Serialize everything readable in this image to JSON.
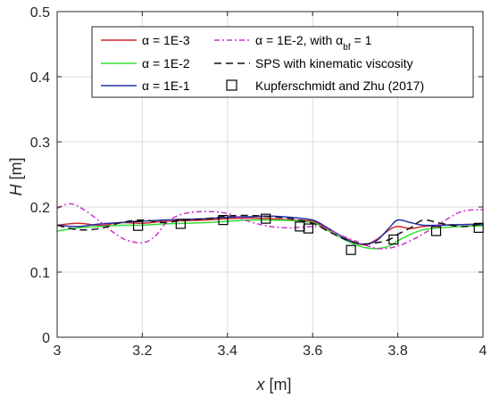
{
  "chart_data": {
    "type": "line",
    "xlabel": {
      "var": "x",
      "unit": " [m]"
    },
    "ylabel": {
      "var": "H",
      "unit": " [m]"
    },
    "xlim": [
      3,
      4
    ],
    "ylim": [
      0,
      0.5
    ],
    "xticks": [
      3,
      3.2,
      3.4,
      3.6,
      3.8,
      4
    ],
    "yticks": [
      0,
      0.1,
      0.2,
      0.3,
      0.4,
      0.5
    ],
    "xtick_labels": [
      "3",
      "3.2",
      "3.4",
      "3.6",
      "3.8",
      "4"
    ],
    "ytick_labels": [
      "0",
      "0.1",
      "0.2",
      "0.3",
      "0.4",
      "0.5"
    ],
    "grid": true,
    "legend_position": "top",
    "series": [
      {
        "name": "α = 1E-3",
        "color": "#d62728",
        "style": "solid",
        "x": [
          3.0,
          3.05,
          3.1,
          3.15,
          3.2,
          3.25,
          3.3,
          3.35,
          3.4,
          3.45,
          3.5,
          3.55,
          3.6,
          3.63,
          3.66,
          3.69,
          3.72,
          3.75,
          3.78,
          3.8,
          3.83,
          3.86,
          3.9,
          3.95,
          4.0
        ],
        "y": [
          0.172,
          0.175,
          0.172,
          0.176,
          0.175,
          0.178,
          0.179,
          0.18,
          0.182,
          0.183,
          0.182,
          0.18,
          0.178,
          0.168,
          0.158,
          0.148,
          0.142,
          0.15,
          0.165,
          0.17,
          0.167,
          0.17,
          0.172,
          0.173,
          0.174
        ]
      },
      {
        "name": "α = 1E-2",
        "color": "#33dd33",
        "style": "solid",
        "x": [
          3.0,
          3.05,
          3.1,
          3.15,
          3.2,
          3.25,
          3.3,
          3.35,
          3.4,
          3.45,
          3.5,
          3.55,
          3.6,
          3.63,
          3.66,
          3.69,
          3.72,
          3.75,
          3.78,
          3.8,
          3.83,
          3.86,
          3.9,
          3.95,
          4.0
        ],
        "y": [
          0.163,
          0.168,
          0.17,
          0.172,
          0.172,
          0.174,
          0.175,
          0.176,
          0.178,
          0.18,
          0.18,
          0.179,
          0.176,
          0.166,
          0.155,
          0.145,
          0.138,
          0.136,
          0.14,
          0.148,
          0.158,
          0.165,
          0.168,
          0.17,
          0.171
        ]
      },
      {
        "name": "α = 1E-1",
        "color": "#2233aa",
        "style": "solid",
        "x": [
          3.0,
          3.05,
          3.1,
          3.15,
          3.2,
          3.25,
          3.3,
          3.35,
          3.4,
          3.45,
          3.5,
          3.55,
          3.6,
          3.63,
          3.66,
          3.69,
          3.72,
          3.75,
          3.78,
          3.8,
          3.83,
          3.86,
          3.9,
          3.95,
          4.0
        ],
        "y": [
          0.172,
          0.17,
          0.174,
          0.176,
          0.178,
          0.18,
          0.181,
          0.182,
          0.184,
          0.185,
          0.186,
          0.184,
          0.18,
          0.17,
          0.158,
          0.147,
          0.143,
          0.148,
          0.168,
          0.18,
          0.176,
          0.172,
          0.172,
          0.173,
          0.173
        ]
      },
      {
        "name": "α = 1E-2, with α_bf = 1",
        "color": "#cc33cc",
        "style": "dashdot",
        "x": [
          3.0,
          3.03,
          3.06,
          3.1,
          3.13,
          3.16,
          3.2,
          3.23,
          3.26,
          3.3,
          3.35,
          3.4,
          3.45,
          3.5,
          3.55,
          3.6,
          3.63,
          3.66,
          3.7,
          3.73,
          3.76,
          3.8,
          3.85,
          3.9,
          3.95,
          4.0
        ],
        "y": [
          0.198,
          0.205,
          0.197,
          0.178,
          0.162,
          0.15,
          0.145,
          0.155,
          0.178,
          0.19,
          0.193,
          0.19,
          0.178,
          0.17,
          0.168,
          0.17,
          0.168,
          0.158,
          0.148,
          0.14,
          0.136,
          0.14,
          0.155,
          0.175,
          0.193,
          0.196
        ]
      },
      {
        "name": "SPS with kinematic viscosity",
        "color": "#111111",
        "style": "dashed",
        "x": [
          3.0,
          3.05,
          3.1,
          3.15,
          3.2,
          3.25,
          3.3,
          3.35,
          3.4,
          3.45,
          3.5,
          3.55,
          3.6,
          3.63,
          3.66,
          3.69,
          3.72,
          3.75,
          3.78,
          3.8,
          3.83,
          3.86,
          3.9,
          3.95,
          4.0
        ],
        "y": [
          0.172,
          0.165,
          0.167,
          0.176,
          0.18,
          0.176,
          0.18,
          0.182,
          0.186,
          0.187,
          0.185,
          0.182,
          0.175,
          0.165,
          0.155,
          0.147,
          0.143,
          0.145,
          0.15,
          0.158,
          0.168,
          0.18,
          0.175,
          0.17,
          0.174
        ]
      },
      {
        "name": "Kupferschmidt and Zhu (2017)",
        "color": "#000000",
        "style": "markers",
        "x": [
          3.19,
          3.29,
          3.39,
          3.49,
          3.57,
          3.59,
          3.69,
          3.79,
          3.89,
          3.99
        ],
        "y": [
          0.171,
          0.174,
          0.18,
          0.182,
          0.17,
          0.167,
          0.134,
          0.15,
          0.163,
          0.168
        ]
      }
    ]
  }
}
